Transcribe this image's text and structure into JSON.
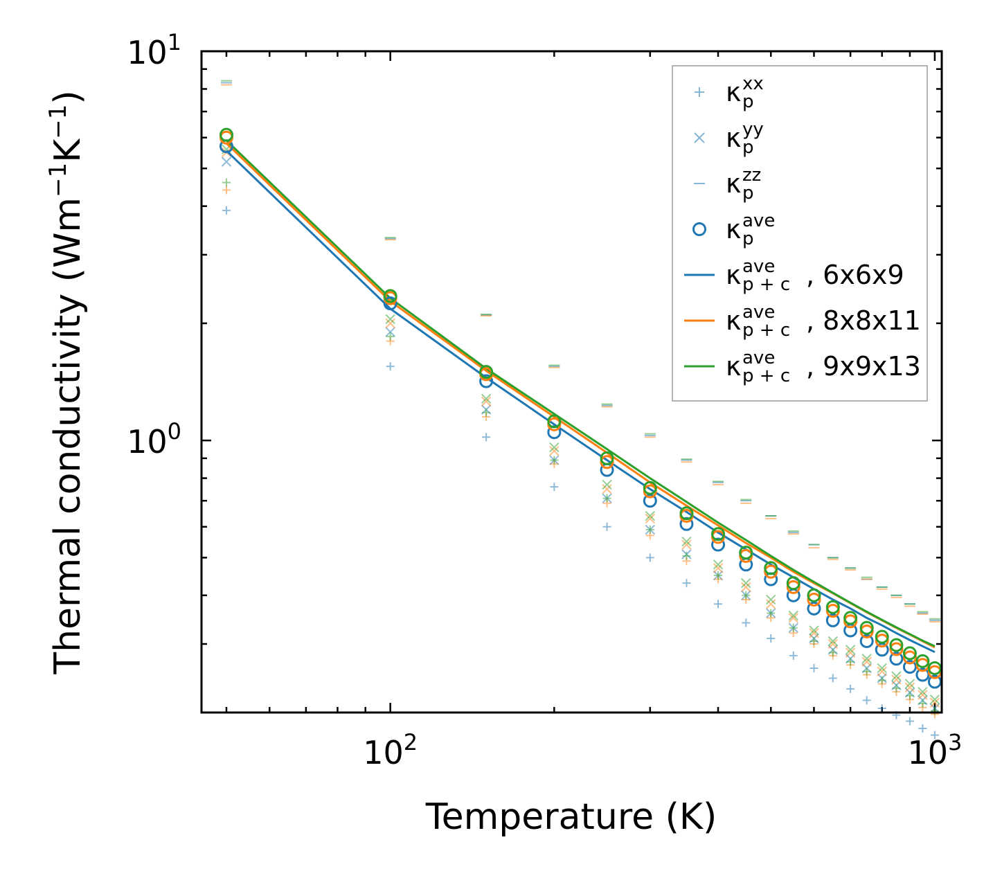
{
  "chart_data": {
    "type": "scatter",
    "xscale": "log",
    "yscale": "log",
    "xlabel": "Temperature (K)",
    "ylabel_parts": {
      "base": "Thermal conductivity (Wm",
      "exp1": "−1",
      "mid": "K",
      "exp2": "−1",
      "end": ")"
    },
    "xlim": [
      45,
      1030
    ],
    "ylim": [
      0.2,
      10
    ],
    "x_ticks": [
      {
        "base": "10",
        "exp": "2",
        "value": 100
      },
      {
        "base": "10",
        "exp": "3",
        "value": 1000
      }
    ],
    "y_ticks": [
      {
        "base": "10",
        "exp": "0",
        "value": 1
      },
      {
        "base": "10",
        "exp": "1",
        "value": 10
      }
    ],
    "temperatures": [
      50,
      100,
      150,
      200,
      250,
      300,
      350,
      400,
      450,
      500,
      550,
      600,
      650,
      700,
      750,
      800,
      850,
      900,
      950,
      1000
    ],
    "colors": {
      "6x6x9": "#1f77b4",
      "8x8x11": "#ff7f0e",
      "9x9x13": "#2ca02c"
    },
    "meshes": [
      {
        "name": "6x6x9",
        "kxx": [
          3.9,
          1.55,
          1.02,
          0.76,
          0.6,
          0.5,
          0.43,
          0.38,
          0.34,
          0.31,
          0.28,
          0.26,
          0.245,
          0.23,
          0.215,
          0.205,
          0.197,
          0.19,
          0.182,
          0.175
        ],
        "kyy": [
          5.2,
          1.9,
          1.2,
          0.89,
          0.71,
          0.59,
          0.51,
          0.45,
          0.4,
          0.36,
          0.33,
          0.31,
          0.29,
          0.275,
          0.26,
          0.245,
          0.235,
          0.225,
          0.215,
          0.205
        ],
        "kzz": [
          8.3,
          3.3,
          2.1,
          1.55,
          1.23,
          1.03,
          0.89,
          0.78,
          0.7,
          0.64,
          0.58,
          0.54,
          0.5,
          0.47,
          0.44,
          0.42,
          0.4,
          0.38,
          0.36,
          0.345
        ],
        "kave": [
          5.7,
          2.25,
          1.42,
          1.05,
          0.84,
          0.7,
          0.61,
          0.54,
          0.48,
          0.44,
          0.4,
          0.37,
          0.345,
          0.325,
          0.305,
          0.29,
          0.275,
          0.262,
          0.25,
          0.24
        ],
        "kpc": [
          5.55,
          2.18,
          1.45,
          1.1,
          0.89,
          0.75,
          0.655,
          0.58,
          0.525,
          0.48,
          0.445,
          0.415,
          0.39,
          0.37,
          0.35,
          0.335,
          0.32,
          0.307,
          0.296,
          0.286
        ]
      },
      {
        "name": "8x8x11",
        "kxx": [
          4.4,
          1.8,
          1.15,
          0.87,
          0.69,
          0.57,
          0.49,
          0.44,
          0.39,
          0.35,
          0.32,
          0.3,
          0.28,
          0.265,
          0.25,
          0.237,
          0.226,
          0.216,
          0.206,
          0.198
        ],
        "kyy": [
          5.5,
          2.0,
          1.26,
          0.94,
          0.75,
          0.63,
          0.54,
          0.47,
          0.42,
          0.38,
          0.35,
          0.32,
          0.3,
          0.285,
          0.27,
          0.255,
          0.243,
          0.232,
          0.222,
          0.212
        ],
        "kzz": [
          8.2,
          3.28,
          2.09,
          1.54,
          1.22,
          1.02,
          0.88,
          0.77,
          0.69,
          0.63,
          0.575,
          0.53,
          0.495,
          0.465,
          0.44,
          0.415,
          0.395,
          0.375,
          0.358,
          0.342
        ],
        "kave": [
          6.0,
          2.32,
          1.48,
          1.1,
          0.88,
          0.74,
          0.64,
          0.565,
          0.505,
          0.46,
          0.42,
          0.39,
          0.365,
          0.343,
          0.323,
          0.306,
          0.291,
          0.277,
          0.265,
          0.254
        ],
        "kpc": [
          5.8,
          2.28,
          1.51,
          1.15,
          0.93,
          0.78,
          0.68,
          0.605,
          0.545,
          0.5,
          0.46,
          0.43,
          0.405,
          0.382,
          0.362,
          0.345,
          0.33,
          0.317,
          0.305,
          0.294
        ]
      },
      {
        "name": "9x9x13",
        "kxx": [
          4.6,
          1.85,
          1.18,
          0.89,
          0.71,
          0.59,
          0.505,
          0.45,
          0.4,
          0.36,
          0.33,
          0.305,
          0.285,
          0.27,
          0.255,
          0.242,
          0.231,
          0.221,
          0.211,
          0.202
        ],
        "kyy": [
          5.6,
          2.05,
          1.28,
          0.96,
          0.77,
          0.64,
          0.55,
          0.48,
          0.43,
          0.39,
          0.355,
          0.325,
          0.305,
          0.29,
          0.275,
          0.26,
          0.248,
          0.237,
          0.226,
          0.216
        ],
        "kzz": [
          8.4,
          3.32,
          2.11,
          1.56,
          1.24,
          1.04,
          0.895,
          0.785,
          0.705,
          0.64,
          0.585,
          0.54,
          0.5,
          0.47,
          0.445,
          0.42,
          0.4,
          0.38,
          0.363,
          0.348
        ],
        "kave": [
          6.1,
          2.35,
          1.5,
          1.12,
          0.9,
          0.755,
          0.65,
          0.575,
          0.515,
          0.47,
          0.43,
          0.4,
          0.373,
          0.35,
          0.33,
          0.313,
          0.298,
          0.284,
          0.271,
          0.26
        ],
        "kpc": [
          5.9,
          2.32,
          1.53,
          1.17,
          0.95,
          0.8,
          0.695,
          0.615,
          0.555,
          0.505,
          0.465,
          0.433,
          0.406,
          0.383,
          0.363,
          0.346,
          0.331,
          0.318,
          0.306,
          0.296
        ]
      }
    ],
    "legend": {
      "placement": "top-right",
      "items": [
        {
          "kind": "plus",
          "color": "#1f77b4",
          "base": "κ",
          "sup": "xx",
          "sub": "p",
          "suffix": ""
        },
        {
          "kind": "cross",
          "color": "#1f77b4",
          "base": "κ",
          "sup": "yy",
          "sub": "p",
          "suffix": ""
        },
        {
          "kind": "dash",
          "color": "#1f77b4",
          "base": "κ",
          "sup": "zz",
          "sub": "p",
          "suffix": ""
        },
        {
          "kind": "circle",
          "color": "#1f77b4",
          "base": "κ",
          "sup": "ave",
          "sub": "p",
          "suffix": ""
        },
        {
          "kind": "line",
          "color": "#1f77b4",
          "base": "κ",
          "sup": "ave",
          "sub": "p + c",
          "suffix": ", 6x6x9"
        },
        {
          "kind": "line",
          "color": "#ff7f0e",
          "base": "κ",
          "sup": "ave",
          "sub": "p + c",
          "suffix": ", 8x8x11"
        },
        {
          "kind": "line",
          "color": "#2ca02c",
          "base": "κ",
          "sup": "ave",
          "sub": "p + c",
          "suffix": ", 9x9x13"
        }
      ]
    }
  }
}
